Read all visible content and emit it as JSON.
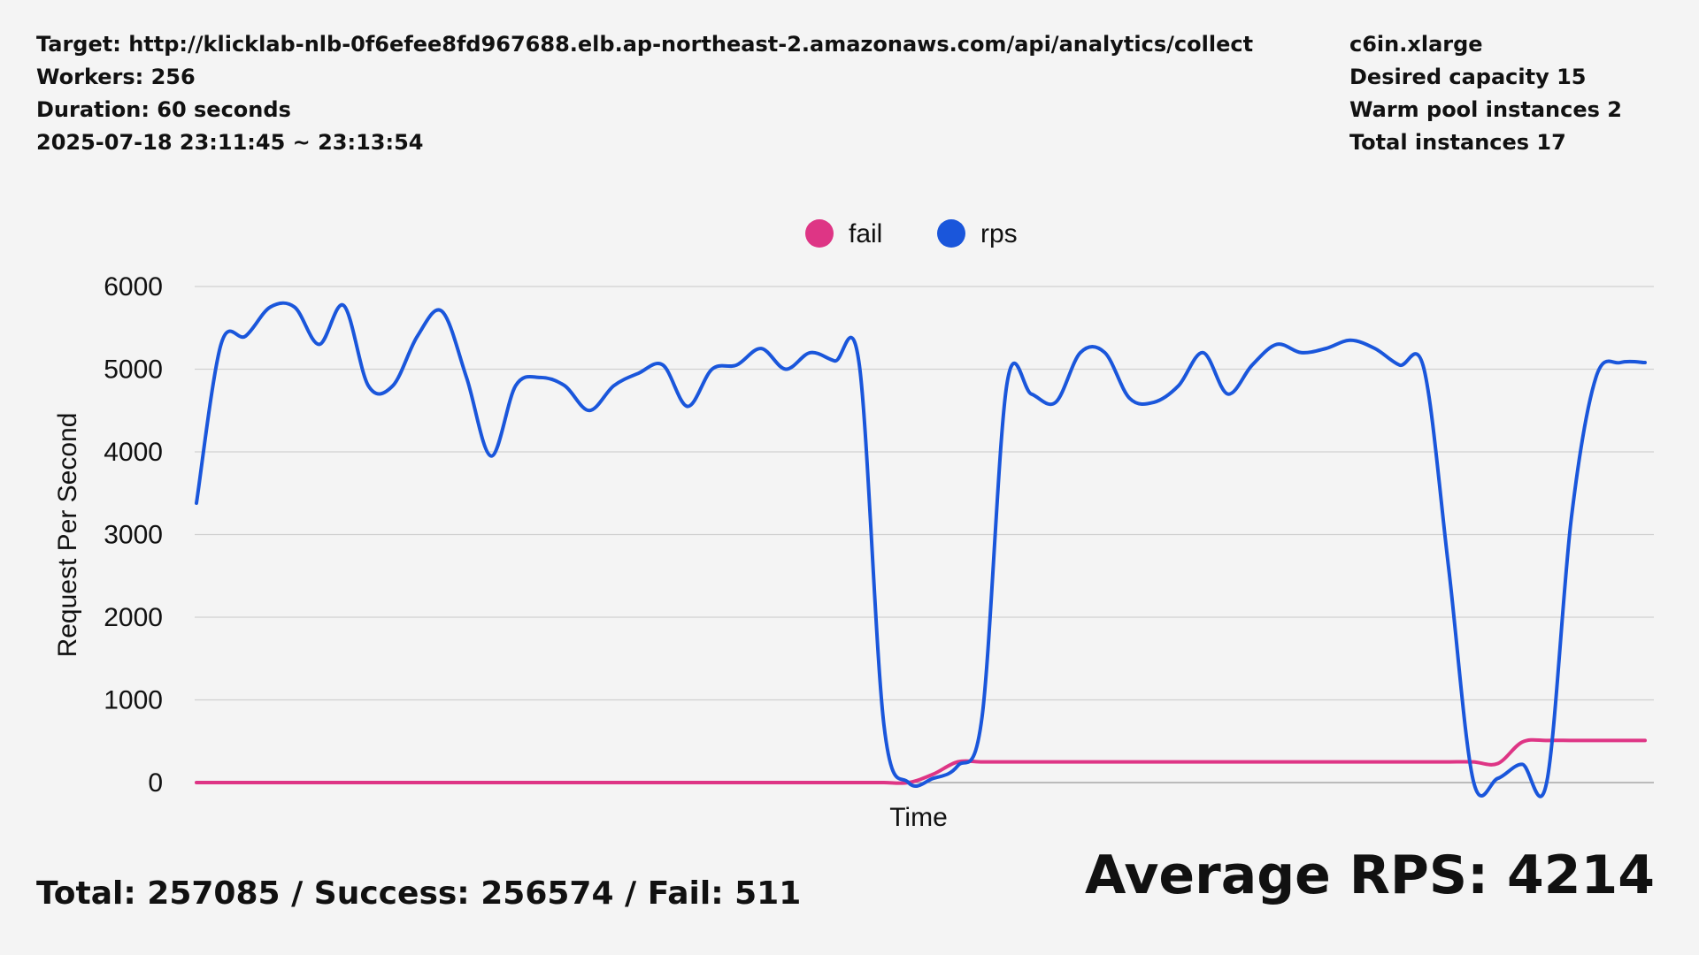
{
  "header": {
    "left": [
      "Target: http://klicklab-nlb-0f6efee8fd967688.elb.ap-northeast-2.amazonaws.com/api/analytics/collect",
      "Workers: 256",
      "Duration: 60 seconds",
      "2025-07-18 23:11:45 ~ 23:13:54"
    ],
    "right": [
      "c6in.xlarge",
      "Desired capacity 15",
      "Warm pool instances 2",
      "Total instances 17"
    ]
  },
  "footer": {
    "summary": "Total: 257085 / Success: 256574 / Fail: 511",
    "average": "Average RPS: 4214"
  },
  "chart_data": {
    "type": "line",
    "xlabel": "Time",
    "ylabel": "Request Per Second",
    "categories": [
      null,
      null,
      null,
      null,
      null,
      null,
      null,
      null,
      null,
      null,
      null,
      null,
      null,
      null,
      null,
      null,
      null,
      null,
      null,
      null,
      null,
      null,
      null,
      null,
      null,
      null,
      null,
      null,
      null,
      null,
      null,
      null,
      null,
      null,
      null,
      null,
      null,
      null,
      null,
      null,
      null,
      null,
      null,
      null,
      null,
      null,
      null,
      null,
      null,
      null,
      null,
      null,
      null,
      null,
      null,
      null,
      null,
      null,
      null,
      null
    ],
    "series": [
      {
        "name": "fail",
        "color": "#de3585",
        "values": [
          0,
          0,
          0,
          0,
          0,
          0,
          0,
          0,
          0,
          0,
          0,
          0,
          0,
          0,
          0,
          0,
          0,
          0,
          0,
          0,
          0,
          0,
          0,
          0,
          0,
          0,
          0,
          0,
          0,
          0,
          100,
          250,
          250,
          250,
          250,
          250,
          250,
          250,
          250,
          250,
          250,
          250,
          250,
          250,
          250,
          250,
          250,
          250,
          250,
          250,
          250,
          250,
          250,
          230,
          490,
          510,
          510,
          510,
          510,
          510
        ]
      },
      {
        "name": "rps",
        "color": "#1a56db",
        "values": [
          3380,
          5300,
          5400,
          5750,
          5750,
          5300,
          5770,
          4800,
          4800,
          5400,
          5700,
          4900,
          3950,
          4800,
          4900,
          4800,
          4500,
          4800,
          4950,
          5050,
          4550,
          5000,
          5050,
          5250,
          5000,
          5200,
          5100,
          5050,
          700,
          0,
          50,
          200,
          800,
          4800,
          4700,
          4600,
          5200,
          5200,
          4650,
          4600,
          4800,
          5200,
          4700,
          5050,
          5300,
          5200,
          5250,
          5350,
          5250,
          5050,
          5000,
          2600,
          30,
          50,
          220,
          10,
          3200,
          4900,
          5080,
          5080
        ]
      }
    ],
    "ylim": [
      0,
      6000
    ],
    "yticks": [
      0,
      1000,
      2000,
      3000,
      4000,
      5000,
      6000
    ],
    "grid": true,
    "legend": "top"
  }
}
